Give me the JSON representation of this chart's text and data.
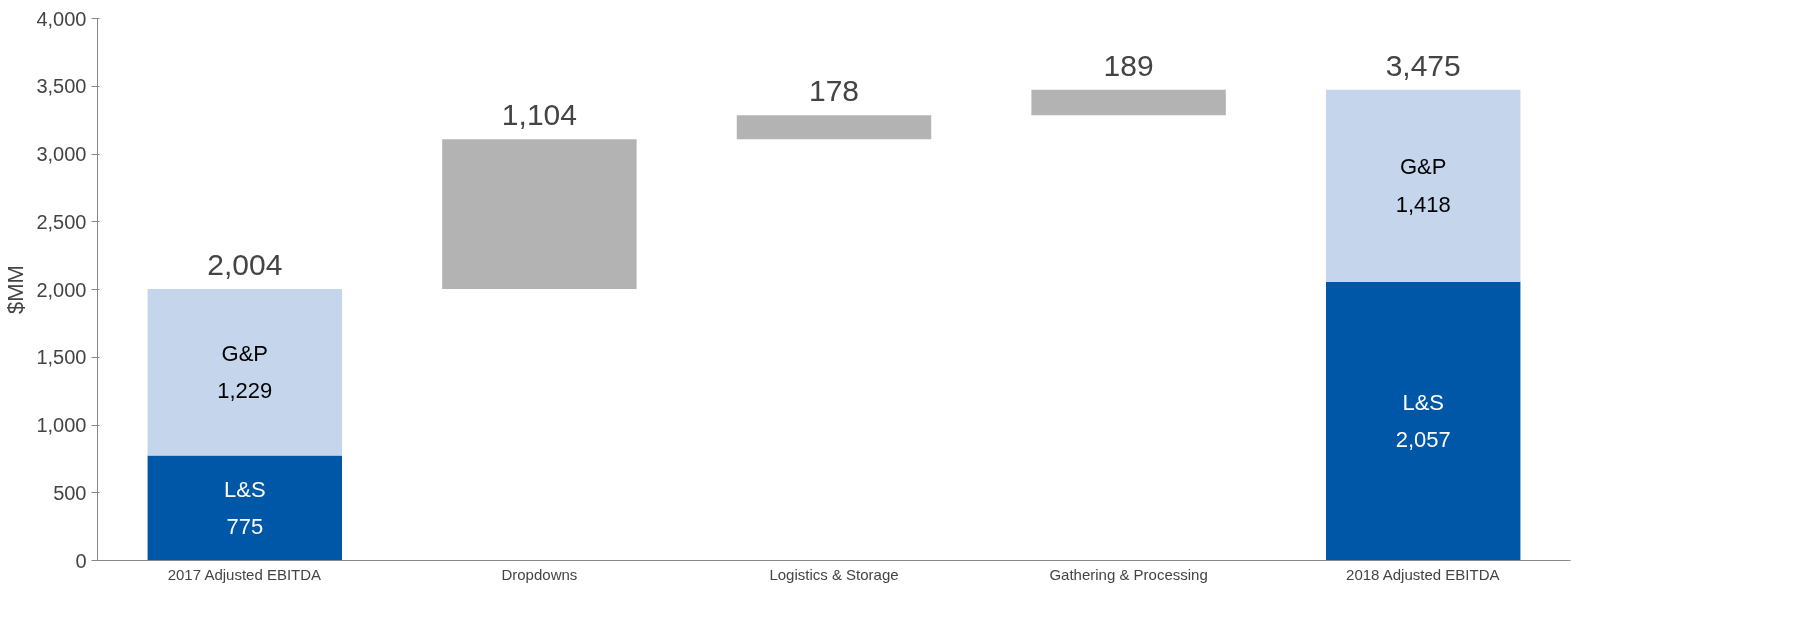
{
  "chart_data": {
    "type": "bar",
    "stacked": true,
    "ylabel": "$MM",
    "categories": [
      "2017 Adjusted EBITDA",
      "Dropdowns",
      "Logistics & Storage",
      "Gathering & Processing",
      "2018 Adjusted EBITDA"
    ],
    "series": [
      {
        "name": "L&S",
        "color": "#0057a8",
        "values": [
          775,
          null,
          null,
          null,
          2057
        ],
        "value_labels": [
          "775",
          null,
          null,
          null,
          "2,057"
        ]
      },
      {
        "name": "G&P",
        "color": "#c5d5ec",
        "values": [
          1229,
          null,
          null,
          null,
          1418
        ],
        "value_labels": [
          "1,229",
          null,
          null,
          null,
          "1,418"
        ]
      },
      {
        "color": "#b3b3b3",
        "values": [
          null,
          1104,
          178,
          189,
          null
        ],
        "base": [
          null,
          2004,
          3108,
          3286,
          null
        ],
        "value_labels": [
          null,
          "1,104",
          "178",
          "189",
          null
        ]
      }
    ],
    "totals": [
      "2,004",
      null,
      null,
      null,
      "3,475"
    ],
    "ylim": [
      0,
      4000
    ],
    "yticks": [
      0,
      {
        "value": 500,
        "label": "500"
      },
      {
        "value": 1000,
        "label": "1,000"
      },
      {
        "value": 1500,
        "label": "1,500"
      },
      {
        "value": 2000,
        "label": "2,000"
      },
      {
        "value": 2500,
        "label": "2,500"
      },
      {
        "value": 3000,
        "label": "3,000"
      },
      {
        "value": 3500,
        "label": "3,500"
      },
      {
        "value": 4000,
        "label": "4,000"
      }
    ],
    "grid": false
  }
}
